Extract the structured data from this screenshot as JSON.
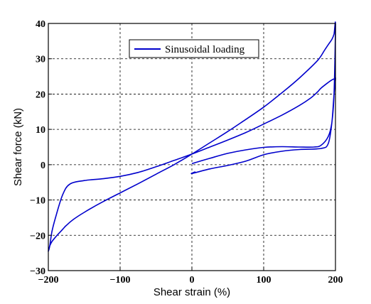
{
  "chart_data": {
    "type": "line",
    "xlabel": "Shear strain (%)",
    "ylabel": "Shear force (kN)",
    "xlim": [
      -200,
      200
    ],
    "ylim": [
      -30,
      40
    ],
    "xticks": [
      -200,
      -100,
      0,
      100,
      200
    ],
    "yticks": [
      -30,
      -20,
      -10,
      0,
      10,
      20,
      30,
      40
    ],
    "xtick_labels": [
      "−200",
      "−100",
      "0",
      "100",
      "200"
    ],
    "ytick_labels": [
      "−30",
      "−20",
      "−10",
      "0",
      "10",
      "20",
      "30",
      "40"
    ],
    "grid": true,
    "grid_style": "dashed",
    "legend_position": "top-center",
    "series_color": "#0000cc",
    "series": [
      {
        "name": "Sinusoidal loading",
        "x": [
          0,
          25,
          50,
          75,
          100,
          125,
          150,
          170,
          180,
          190,
          195,
          198,
          200,
          198,
          195,
          190,
          185,
          175,
          150,
          125,
          100,
          75,
          50,
          25,
          0,
          -25,
          -50,
          -75,
          -100,
          -125,
          -150,
          -165,
          -175,
          -180,
          -190,
          -195,
          -198,
          -200,
          -198,
          -195,
          -190,
          -180,
          -170,
          -150,
          -125,
          -100,
          -75,
          -50,
          -25,
          0,
          25,
          50,
          75,
          100,
          125,
          150,
          165,
          175,
          180,
          190,
          195,
          198,
          200,
          198,
          195,
          190,
          180,
          150,
          125,
          100,
          75,
          50,
          25,
          0,
          5
        ],
        "y": [
          0.3,
          1.8,
          3.2,
          4.2,
          4.9,
          5.1,
          5.0,
          5.0,
          5.5,
          8,
          12,
          20,
          39.5,
          37,
          35.5,
          34,
          32.5,
          29.5,
          24.6,
          20.3,
          16.3,
          12.8,
          9.4,
          6.2,
          3.0,
          0,
          -2.7,
          -5.4,
          -8.0,
          -10.6,
          -13.5,
          -15.5,
          -17.2,
          -18.3,
          -20.5,
          -21.8,
          -23,
          -24.5,
          -23,
          -19,
          -15,
          -8.5,
          -5.5,
          -4.5,
          -4.0,
          -3.3,
          -2.2,
          -0.6,
          1.2,
          3.0,
          5.0,
          7.0,
          9.1,
          11.5,
          14.0,
          16.8,
          18.8,
          20.6,
          21.7,
          23.3,
          24.0,
          24.3,
          24.4,
          20,
          12,
          6,
          4.6,
          4.3,
          3.8,
          2.8,
          1.0,
          -0.2,
          -1.2,
          -2.5,
          -2.0
        ]
      }
    ]
  }
}
